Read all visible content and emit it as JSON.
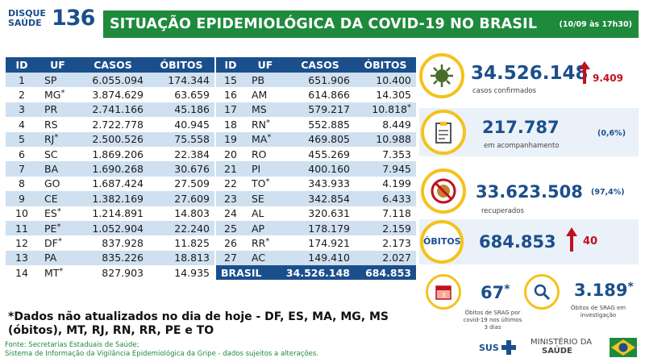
{
  "logo": {
    "line1": "DISQUE",
    "line2": "SAÚDE",
    "number": "136"
  },
  "header": {
    "title": "SITUAÇÃO EPIDEMIOLÓGICA DA COVID-19 NO BRASIL",
    "date": "(10/09 às 17h30)"
  },
  "table": {
    "columns": [
      "ID",
      "UF",
      "CASOS",
      "ÓBITOS"
    ],
    "left_rows": [
      {
        "id": "1",
        "uf": "SP",
        "ast": "",
        "casos": "6.055.094",
        "obitos": "174.344",
        "obitos_ast": ""
      },
      {
        "id": "2",
        "uf": "MG",
        "ast": "*",
        "casos": "3.874.629",
        "obitos": "63.659",
        "obitos_ast": ""
      },
      {
        "id": "3",
        "uf": "PR",
        "ast": "",
        "casos": "2.741.166",
        "obitos": "45.186",
        "obitos_ast": ""
      },
      {
        "id": "4",
        "uf": "RS",
        "ast": "",
        "casos": "2.722.778",
        "obitos": "40.945",
        "obitos_ast": ""
      },
      {
        "id": "5",
        "uf": "RJ",
        "ast": "*",
        "casos": "2.500.526",
        "obitos": "75.558",
        "obitos_ast": ""
      },
      {
        "id": "6",
        "uf": "SC",
        "ast": "",
        "casos": "1.869.206",
        "obitos": "22.384",
        "obitos_ast": ""
      },
      {
        "id": "7",
        "uf": "BA",
        "ast": "",
        "casos": "1.690.268",
        "obitos": "30.676",
        "obitos_ast": ""
      },
      {
        "id": "8",
        "uf": "GO",
        "ast": "",
        "casos": "1.687.424",
        "obitos": "27.509",
        "obitos_ast": ""
      },
      {
        "id": "9",
        "uf": "CE",
        "ast": "",
        "casos": "1.382.169",
        "obitos": "27.609",
        "obitos_ast": ""
      },
      {
        "id": "10",
        "uf": "ES",
        "ast": "*",
        "casos": "1.214.891",
        "obitos": "14.803",
        "obitos_ast": ""
      },
      {
        "id": "11",
        "uf": "PE",
        "ast": "*",
        "casos": "1.052.904",
        "obitos": "22.240",
        "obitos_ast": ""
      },
      {
        "id": "12",
        "uf": "DF",
        "ast": "*",
        "casos": "837.928",
        "obitos": "11.825",
        "obitos_ast": ""
      },
      {
        "id": "13",
        "uf": "PA",
        "ast": "",
        "casos": "835.226",
        "obitos": "18.813",
        "obitos_ast": ""
      },
      {
        "id": "14",
        "uf": "MT",
        "ast": "*",
        "casos": "827.903",
        "obitos": "14.935",
        "obitos_ast": ""
      }
    ],
    "right_rows": [
      {
        "id": "15",
        "uf": "PB",
        "ast": "",
        "casos": "651.906",
        "obitos": "10.400",
        "obitos_ast": ""
      },
      {
        "id": "16",
        "uf": "AM",
        "ast": "",
        "casos": "614.866",
        "obitos": "14.305",
        "obitos_ast": ""
      },
      {
        "id": "17",
        "uf": "MS",
        "ast": "",
        "casos": "579.217",
        "obitos": "10.818",
        "obitos_ast": "*"
      },
      {
        "id": "18",
        "uf": "RN",
        "ast": "*",
        "casos": "552.885",
        "obitos": "8.449",
        "obitos_ast": ""
      },
      {
        "id": "19",
        "uf": "MA",
        "ast": "*",
        "casos": "469.805",
        "obitos": "10.988",
        "obitos_ast": ""
      },
      {
        "id": "20",
        "uf": "RO",
        "ast": "",
        "casos": "455.269",
        "obitos": "7.353",
        "obitos_ast": ""
      },
      {
        "id": "21",
        "uf": "PI",
        "ast": "",
        "casos": "400.160",
        "obitos": "7.945",
        "obitos_ast": ""
      },
      {
        "id": "22",
        "uf": "TO",
        "ast": "*",
        "casos": "343.933",
        "obitos": "4.199",
        "obitos_ast": ""
      },
      {
        "id": "23",
        "uf": "SE",
        "ast": "",
        "casos": "342.854",
        "obitos": "6.433",
        "obitos_ast": ""
      },
      {
        "id": "24",
        "uf": "AL",
        "ast": "",
        "casos": "320.631",
        "obitos": "7.118",
        "obitos_ast": ""
      },
      {
        "id": "25",
        "uf": "AP",
        "ast": "",
        "casos": "178.179",
        "obitos": "2.159",
        "obitos_ast": ""
      },
      {
        "id": "26",
        "uf": "RR",
        "ast": "*",
        "casos": "174.921",
        "obitos": "2.173",
        "obitos_ast": ""
      },
      {
        "id": "27",
        "uf": "AC",
        "ast": "",
        "casos": "149.410",
        "obitos": "2.027",
        "obitos_ast": ""
      }
    ],
    "total": {
      "label": "BRASIL",
      "casos": "34.526.148",
      "obitos": "684.853"
    }
  },
  "stats": {
    "confirmed": {
      "value": "34.526.148",
      "delta": "9.409",
      "label": "casos confirmados",
      "icon": "virus-icon"
    },
    "monitoring": {
      "value": "217.787",
      "pct": "(0,6%)",
      "label": "em acompanhamento",
      "icon": "clipboard-icon"
    },
    "recovered": {
      "value": "33.623.508",
      "pct": "(97,4%)",
      "label": "recuperados",
      "icon": "no-virus-icon"
    },
    "deaths": {
      "badge": "ÓBITOS",
      "value": "684.853",
      "delta": "40"
    },
    "srag_recent": {
      "value": "67",
      "ast": "*",
      "label_lines": [
        "Óbitos de SRAG por",
        "covid-19 nos últimos",
        "3 dias"
      ],
      "icon": "calendar-icon"
    },
    "srag_investigation": {
      "value": "3.189",
      "ast": "*",
      "label_lines": [
        "Óbitos de SRAG em",
        "investigação"
      ],
      "icon": "magnifier-icon"
    }
  },
  "note": {
    "line1": "*Dados não atualizados no dia de hoje - DF, ES, MA, MG, MS",
    "line2": "(óbitos), MT, RJ, RN, RR, PE e TO"
  },
  "source": {
    "line1": "Fonte: Secretarias Estaduais de Saúde;",
    "line2": "Sistema de Informação da Vigilância Epidemiológica da Gripe - dados sujeitos a alterações."
  },
  "footer": {
    "sus": "SUS",
    "ministry_line1": "MINISTÉRIO DA",
    "ministry_line2": "SAÚDE"
  },
  "colors": {
    "blue": "#1b4f8c",
    "green": "#1e8a3c",
    "yellow": "#f4c21c",
    "red": "#c0101e",
    "row_alt": "#cfe0f0"
  }
}
